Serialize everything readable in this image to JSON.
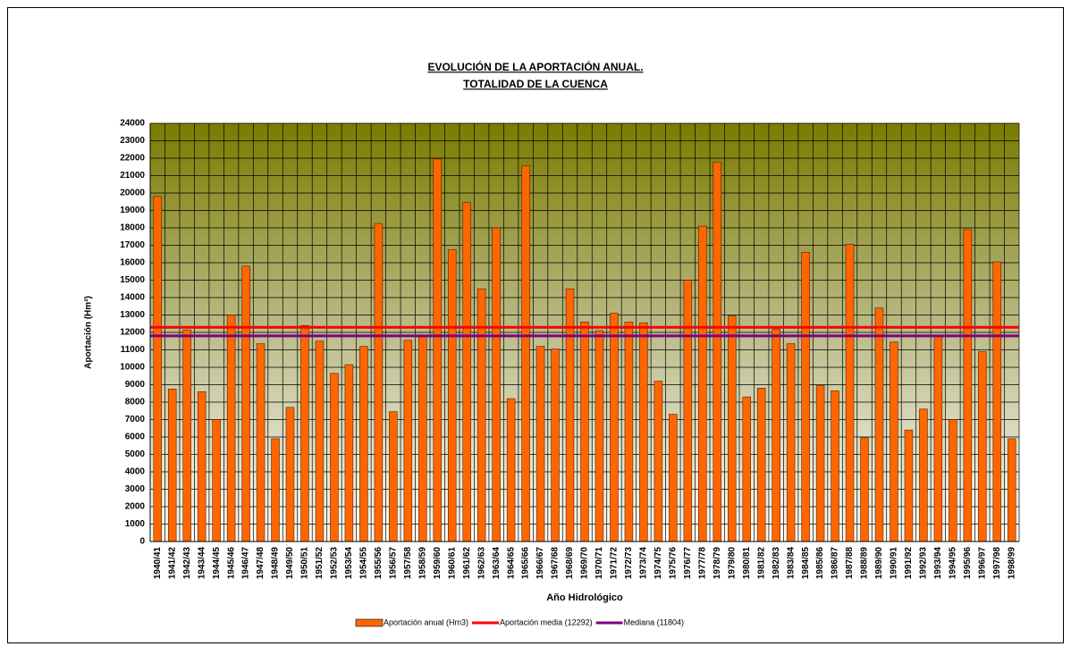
{
  "chart_data": {
    "type": "bar",
    "title": [
      "EVOLUCIÓN DE LA APORTACIÓN ANUAL.",
      "TOTALIDAD DE LA CUENCA"
    ],
    "x_label": "Año Hidrológico",
    "y_label": "Aportación (Hm³)",
    "categories": [
      "1940/41",
      "1941/42",
      "1942/43",
      "1943/44",
      "1944/45",
      "1945/46",
      "1946/47",
      "1947/48",
      "1948/49",
      "1949/50",
      "1950/51",
      "1951/52",
      "1952/53",
      "1953/54",
      "1954/55",
      "1955/56",
      "1956/57",
      "1957/58",
      "1958/59",
      "1959/60",
      "1960/61",
      "1961/62",
      "1962/63",
      "1963/64",
      "1964/65",
      "1965/66",
      "1966/67",
      "1967/68",
      "1968/69",
      "1969/70",
      "1970/71",
      "1971/72",
      "1972/73",
      "1973/74",
      "1974/75",
      "1975/76",
      "1976/77",
      "1977/78",
      "1978/79",
      "1979/80",
      "1980/81",
      "1981/82",
      "1982/83",
      "1983/84",
      "1984/85",
      "1985/86",
      "1986/87",
      "1987/88",
      "1988/89",
      "1989/90",
      "1990/91",
      "1991/92",
      "1992/93",
      "1993/94",
      "1994/95",
      "1995/96",
      "1996/97",
      "1997/98",
      "1998/99"
    ],
    "series": [
      {
        "name": "Aportación anual (Hm3)",
        "color": "#ff6600",
        "values": [
          19800,
          8750,
          12150,
          8600,
          7000,
          13000,
          15800,
          11350,
          5900,
          7700,
          12400,
          11500,
          9650,
          10150,
          11200,
          18250,
          7450,
          11550,
          11750,
          21950,
          16750,
          19450,
          14500,
          18000,
          8200,
          21550,
          11200,
          11050,
          14500,
          12600,
          12100,
          13100,
          12600,
          12550,
          9200,
          7300,
          15000,
          18100,
          21750,
          12950,
          8300,
          8800,
          12200,
          11350,
          16600,
          8950,
          8650,
          17050,
          5950,
          13400,
          11450,
          6400,
          7600,
          11800,
          7000,
          17900,
          10900,
          16050,
          5900
        ]
      },
      {
        "name": "Aportación media (12292)",
        "color": "#ff0000",
        "value": 12292
      },
      {
        "name": "Mediana (11804)",
        "color": "#800080",
        "value": 11804
      }
    ],
    "ylim": [
      0,
      24000
    ],
    "yticks": [
      0,
      1000,
      2000,
      3000,
      4000,
      5000,
      6000,
      7000,
      8000,
      9000,
      10000,
      11000,
      12000,
      13000,
      14000,
      15000,
      16000,
      17000,
      18000,
      19000,
      20000,
      21000,
      22000,
      23000,
      24000
    ],
    "grid": true
  }
}
